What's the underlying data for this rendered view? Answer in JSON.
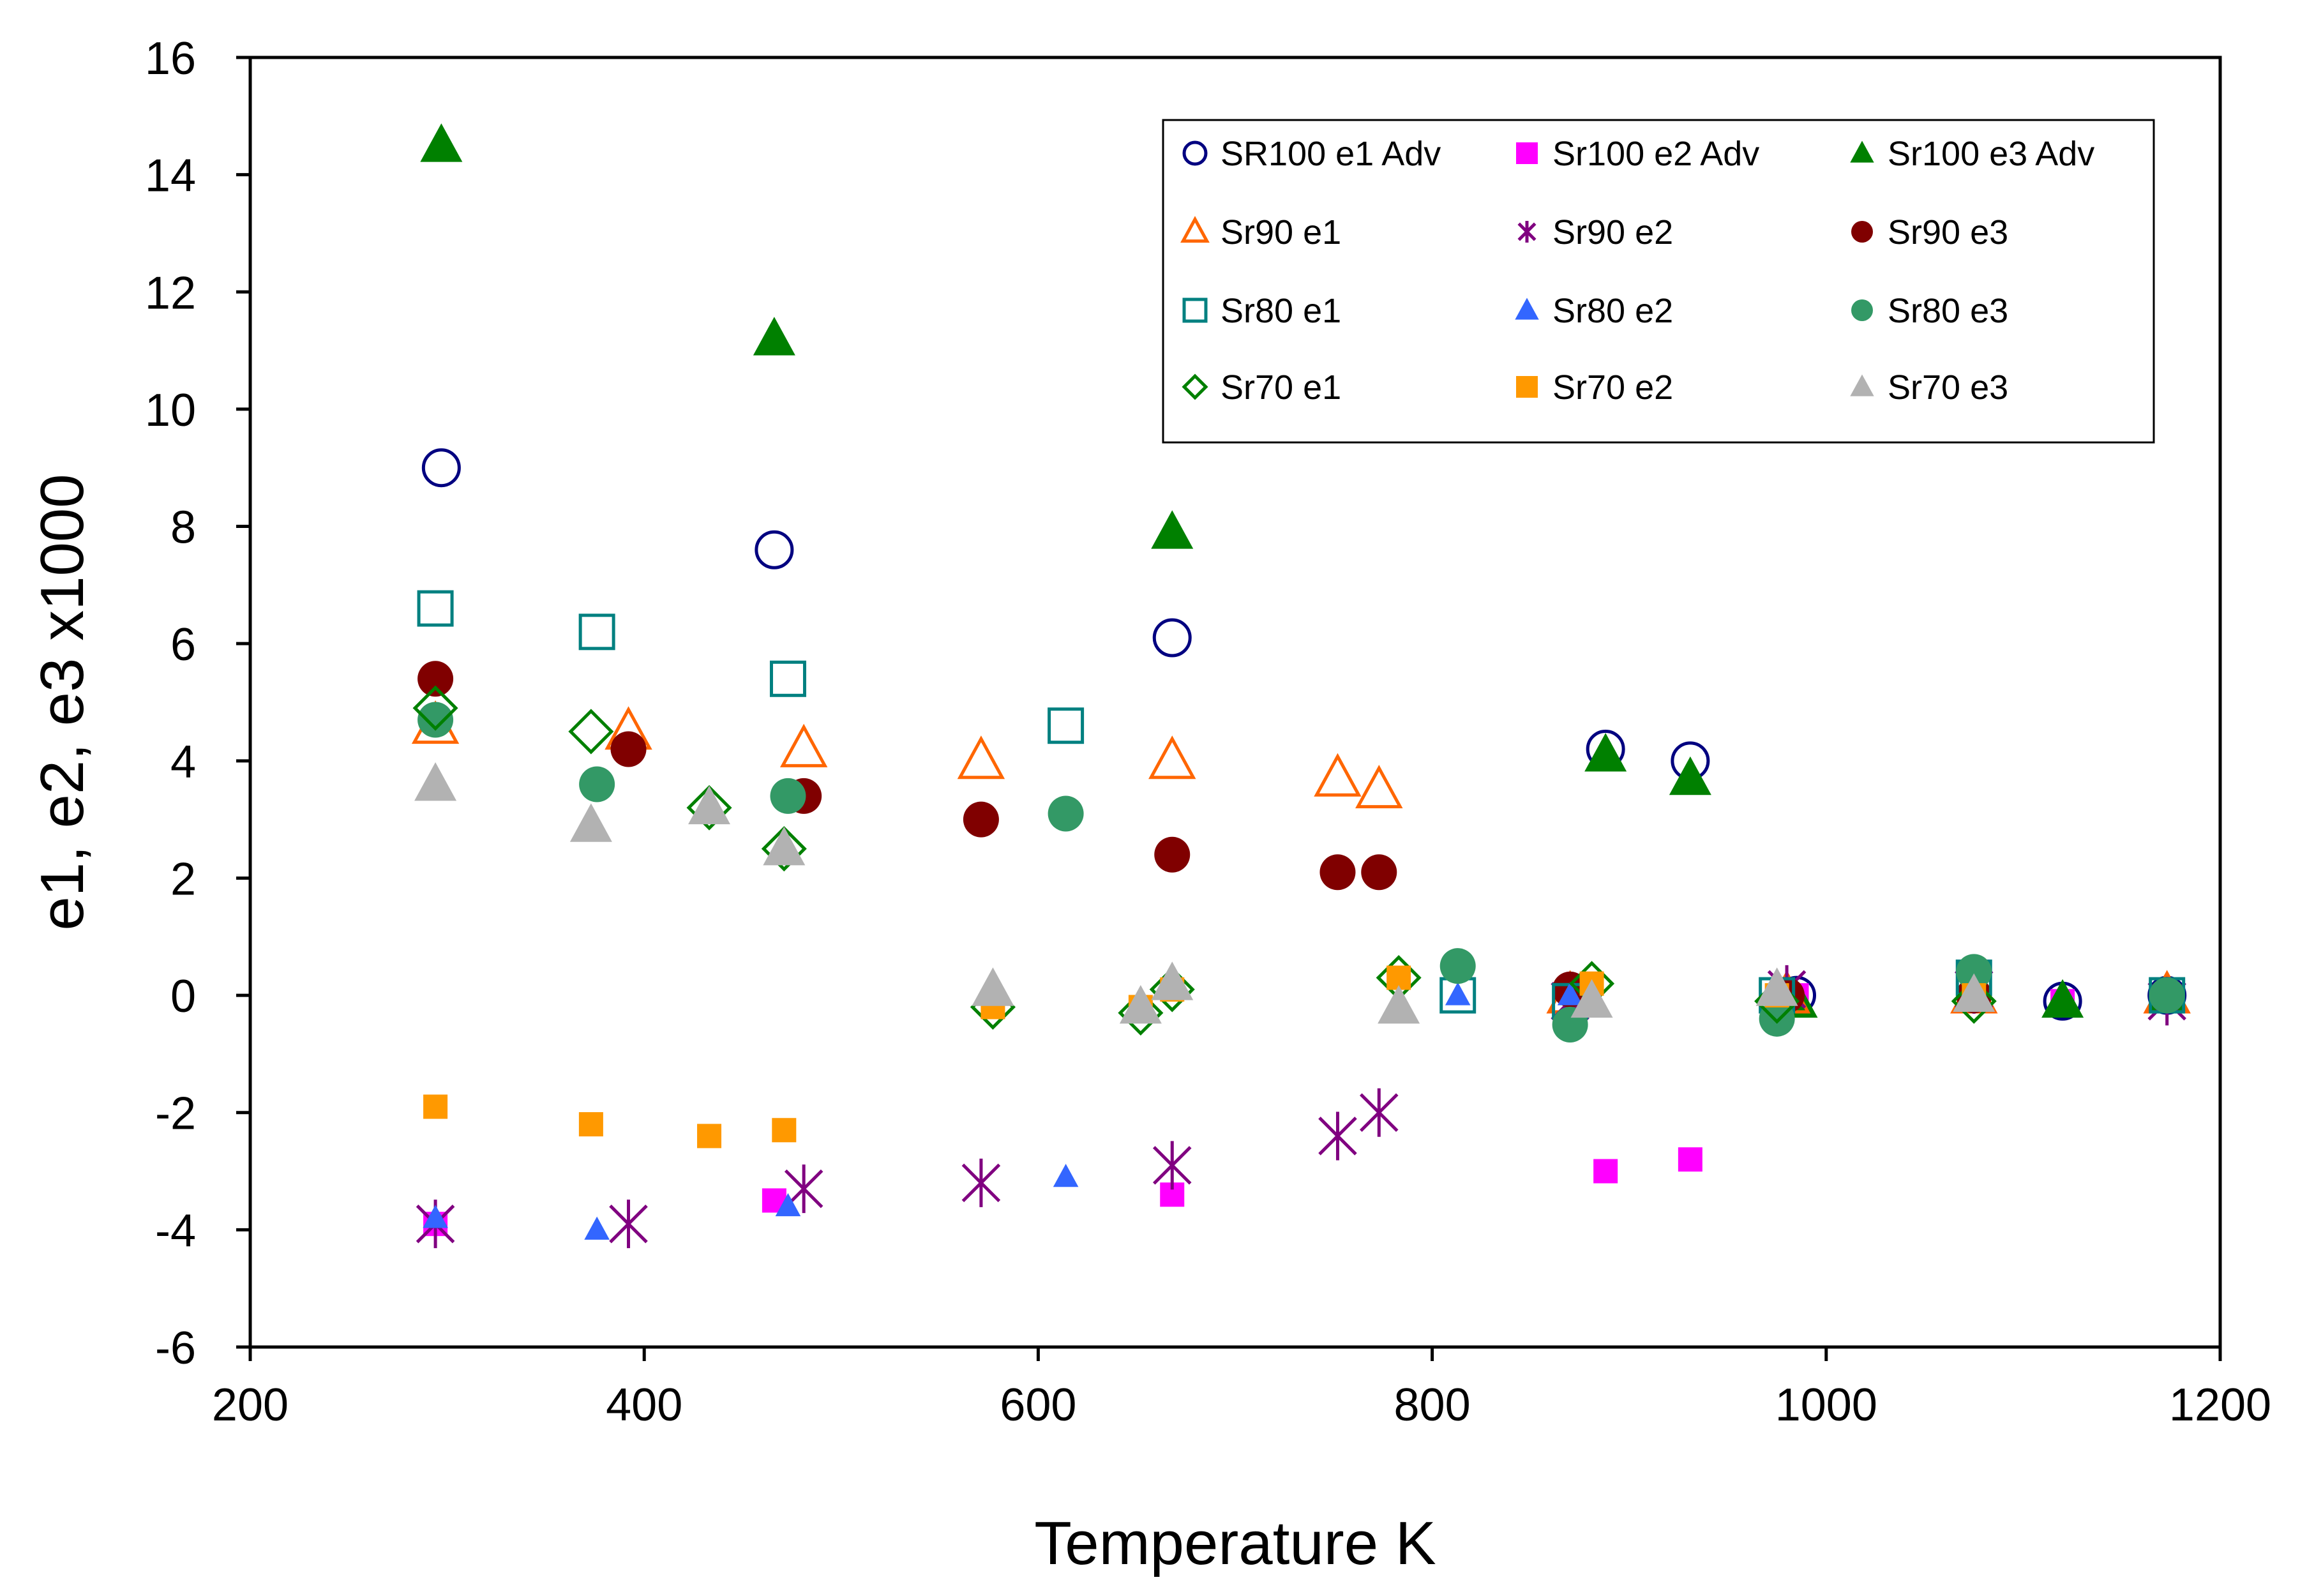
{
  "chart_data": {
    "type": "scatter",
    "title": "",
    "xlabel": "Temperature K",
    "ylabel": "e1, e2, e3   x1000",
    "xlim": [
      200,
      1200
    ],
    "ylim": [
      -6,
      16
    ],
    "xticks": [
      200,
      400,
      600,
      800,
      1000,
      1200
    ],
    "yticks": [
      -6,
      -4,
      -2,
      0,
      2,
      4,
      6,
      8,
      10,
      12,
      14,
      16
    ],
    "grid": false,
    "legend_position": "top-right",
    "series": [
      {
        "name": "SR100 e1 Adv",
        "marker": "circle-open",
        "color": "#000080",
        "x": [
          297,
          466,
          668,
          888,
          931,
          985,
          1120,
          1173
        ],
        "y": [
          9.0,
          7.6,
          6.1,
          4.2,
          4.0,
          0.0,
          -0.1,
          0.0
        ]
      },
      {
        "name": "Sr100 e2 Adv",
        "marker": "square",
        "color": "#ff00ff",
        "x": [
          294,
          466,
          668,
          888,
          931,
          985,
          1120,
          1173
        ],
        "y": [
          -3.9,
          -3.5,
          -3.4,
          -3.0,
          -2.8,
          0.0,
          -0.1,
          0.0
        ]
      },
      {
        "name": "Sr100 e3 Adv",
        "marker": "triangle",
        "color": "#008000",
        "x": [
          297,
          466,
          668,
          888,
          931,
          985,
          1120,
          1173
        ],
        "y": [
          14.5,
          11.2,
          7.9,
          4.1,
          3.7,
          -0.1,
          -0.1,
          0.0
        ]
      },
      {
        "name": "Sr90 e1",
        "marker": "triangle-open",
        "color": "#ff6600",
        "x": [
          294,
          392,
          481,
          571,
          668,
          752,
          773,
          870,
          980,
          1075,
          1173
        ],
        "y": [
          4.6,
          4.5,
          4.2,
          4.0,
          4.0,
          3.7,
          3.5,
          0.0,
          0.0,
          0.0,
          0.0
        ]
      },
      {
        "name": "Sr90 e2",
        "marker": "asterisk",
        "color": "#800080",
        "x": [
          294,
          392,
          481,
          571,
          668,
          752,
          773,
          870,
          980,
          1075,
          1173
        ],
        "y": [
          -3.9,
          -3.9,
          -3.3,
          -3.2,
          -2.9,
          -2.4,
          -2.0,
          -0.1,
          0.1,
          0.1,
          -0.1
        ]
      },
      {
        "name": "Sr90 e3",
        "marker": "circle",
        "color": "#800000",
        "x": [
          294,
          392,
          481,
          571,
          668,
          752,
          773,
          870,
          980,
          1075,
          1173
        ],
        "y": [
          5.4,
          4.2,
          3.4,
          3.0,
          2.4,
          2.1,
          2.1,
          0.1,
          0.0,
          0.0,
          0.0
        ]
      },
      {
        "name": "Sr80 e1",
        "marker": "square-open",
        "color": "#008080",
        "x": [
          294,
          376,
          473,
          614,
          813,
          870,
          975,
          1075,
          1173
        ],
        "y": [
          6.6,
          6.2,
          5.4,
          4.6,
          0.0,
          -0.1,
          0.0,
          0.3,
          0.0
        ]
      },
      {
        "name": "Sr80 e2",
        "marker": "triangle",
        "color": "#3366ff",
        "x": [
          294,
          376,
          473,
          614,
          813,
          870,
          975,
          1075,
          1173
        ],
        "y": [
          -3.8,
          -4.0,
          -3.6,
          -3.1,
          0.0,
          0.0,
          0.0,
          0.1,
          0.0
        ]
      },
      {
        "name": "Sr80 e3",
        "marker": "circle",
        "color": "#339966",
        "x": [
          294,
          376,
          473,
          614,
          813,
          870,
          975,
          1075,
          1173
        ],
        "y": [
          4.7,
          3.6,
          3.4,
          3.1,
          0.5,
          -0.5,
          -0.4,
          0.4,
          0.0
        ]
      },
      {
        "name": "Sr70 e1",
        "marker": "diamond-open",
        "color": "#008000",
        "x": [
          294,
          373,
          433,
          471,
          577,
          652,
          668,
          783,
          881,
          975,
          1075
        ],
        "y": [
          4.9,
          4.5,
          3.2,
          2.5,
          -0.2,
          -0.3,
          0.1,
          0.3,
          0.2,
          -0.1,
          -0.1
        ]
      },
      {
        "name": "Sr70 e2",
        "marker": "square",
        "color": "#ff9900",
        "x": [
          294,
          373,
          433,
          471,
          577,
          652,
          668,
          783,
          881,
          975,
          1075
        ],
        "y": [
          -1.9,
          -2.2,
          -2.4,
          -2.3,
          -0.2,
          -0.2,
          0.1,
          0.3,
          0.2,
          0.0,
          0.0
        ]
      },
      {
        "name": "Sr70 e3",
        "marker": "triangle",
        "color": "#b2b2b2",
        "x": [
          294,
          373,
          433,
          471,
          577,
          652,
          668,
          783,
          881,
          975,
          1075
        ],
        "y": [
          3.6,
          2.9,
          3.2,
          2.5,
          0.1,
          -0.2,
          0.2,
          -0.2,
          -0.1,
          0.1,
          0.0
        ]
      }
    ]
  }
}
